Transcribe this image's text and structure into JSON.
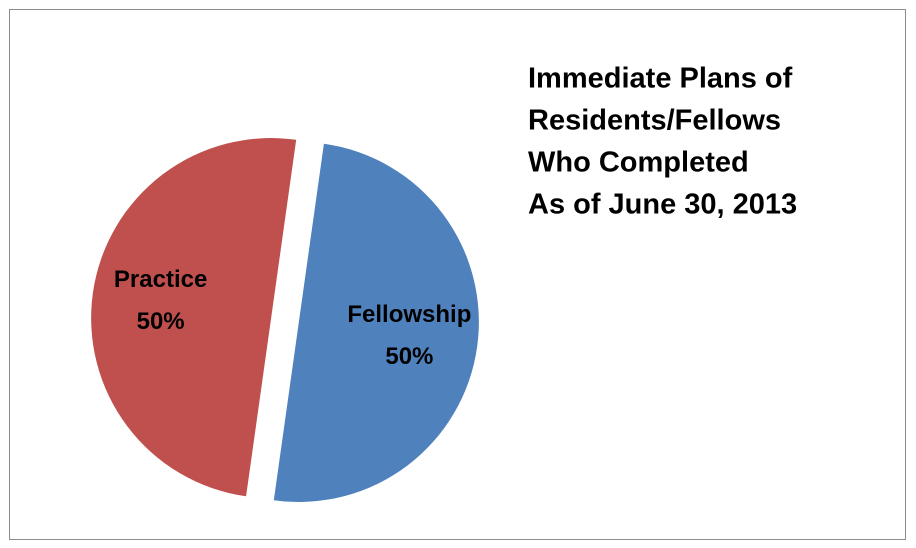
{
  "chart_data": {
    "type": "pie",
    "title": [
      "Immediate Plans of",
      "Residents/Fellows",
      "Who Completed",
      "As of June 30, 2013"
    ],
    "categories": [
      "Fellowship",
      "Practice"
    ],
    "values": [
      50,
      50
    ],
    "value_labels": [
      "50%",
      "50%"
    ],
    "colors": [
      "#4f81bd",
      "#c0504d"
    ]
  }
}
